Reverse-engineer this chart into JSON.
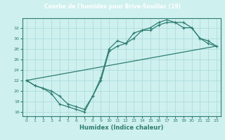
{
  "title": "Courbe de l'humidex pour Brive-Souillac (19)",
  "xlabel": "Humidex (Indice chaleur)",
  "bg_color": "#cef0ee",
  "line_color": "#2e7d72",
  "xlim": [
    -0.5,
    23.5
  ],
  "ylim": [
    15.2,
    33.8
  ],
  "yticks": [
    16,
    18,
    20,
    22,
    24,
    26,
    28,
    30,
    32
  ],
  "xticks": [
    0,
    1,
    2,
    3,
    4,
    5,
    6,
    7,
    8,
    9,
    10,
    11,
    12,
    13,
    14,
    15,
    16,
    17,
    18,
    19,
    20,
    21,
    22,
    23
  ],
  "series1_x": [
    0,
    1,
    2,
    3,
    4,
    5,
    6,
    7,
    8,
    9,
    10,
    11,
    12,
    13,
    14,
    15,
    16,
    17,
    18,
    19,
    20,
    21,
    22,
    23
  ],
  "series1_y": [
    22,
    21,
    20.5,
    19.5,
    17.5,
    17,
    16.5,
    16,
    19,
    22.5,
    28,
    29.5,
    29,
    31,
    31.5,
    32,
    33,
    33.5,
    33,
    32,
    32,
    30,
    29.5,
    28.5
  ],
  "series2_x": [
    0,
    1,
    2,
    3,
    4,
    5,
    6,
    7,
    8,
    9,
    10,
    11,
    12,
    13,
    14,
    15,
    16,
    17,
    18,
    19,
    20,
    21,
    22,
    23
  ],
  "series2_y": [
    22,
    21,
    20.5,
    20,
    19,
    17.5,
    17,
    16.5,
    19,
    22,
    27.5,
    28.5,
    29,
    30,
    31.5,
    31.5,
    32.5,
    33,
    33,
    33,
    32,
    30,
    29,
    28.5
  ],
  "series3_x": [
    0,
    23
  ],
  "series3_y": [
    22,
    28.5
  ],
  "title_bg": "#3a8a7e",
  "title_color": "#ffffff"
}
